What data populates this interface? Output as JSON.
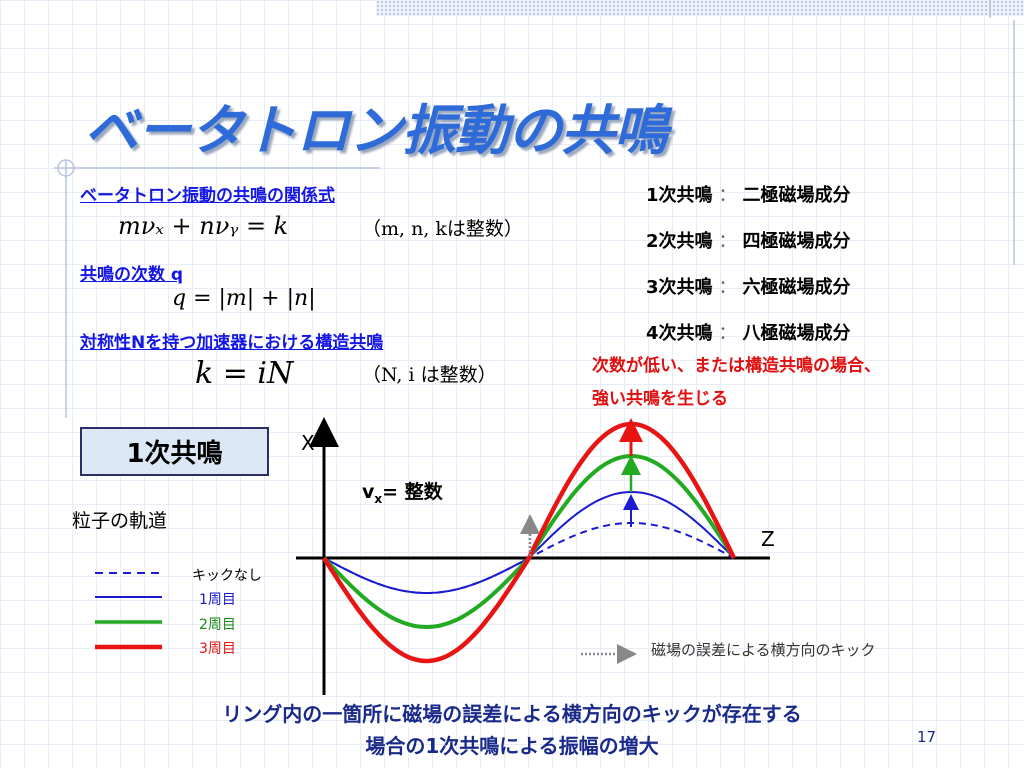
{
  "title": "ベータトロン振動の共鳴",
  "relation": {
    "heading": "ベータトロン振動の共鳴の関係式",
    "formula": "mνₓ + nνᵧ = k",
    "note": "（m, n, kは整数）"
  },
  "order": {
    "heading": "共鳴の次数 q",
    "formula": "q = |m| + |n|"
  },
  "structural": {
    "heading": "対称性Nを持つ加速器における構造共鳴",
    "formula": "k = iN",
    "note": "（N, i は整数）"
  },
  "resonances": [
    {
      "order": "1",
      "label": "次共鳴",
      "sep": "：",
      "component": "二極磁場成分"
    },
    {
      "order": "2",
      "label": "次共鳴",
      "sep": "：",
      "component": "四極磁場成分"
    },
    {
      "order": "3",
      "label": "次共鳴",
      "sep": "：",
      "component": "六極磁場成分"
    },
    {
      "order": "4",
      "label": "次共鳴",
      "sep": "：",
      "component": "八極磁場成分"
    }
  ],
  "red_note": {
    "line1": "次数が低い、または構造共鳴の場合、",
    "line2": "強い共鳴を生じる"
  },
  "box_label": "1次共鳴",
  "trajectory_label": "粒子の軌道",
  "plot": {
    "x_axis": "X",
    "z_axis": "Z",
    "vx_label": "v",
    "vx_sub": "x",
    "vx_value": "= 整数"
  },
  "legend": [
    {
      "label": "キックなし",
      "color": "#1a1ad0",
      "style": "dashed"
    },
    {
      "label": "1周目",
      "color": "#1a1ad0",
      "style": "solid"
    },
    {
      "label": "2周目",
      "color": "#22aa22",
      "style": "solid"
    },
    {
      "label": "3周目",
      "color": "#e81414",
      "style": "solid"
    }
  ],
  "kick_legend": "磁場の誤差による横方向のキック",
  "bottom_text": {
    "line1": "リング内の一箇所に磁場の誤差による横方向のキックが存在する",
    "line2": "場合の1次共鳴による振幅の増大"
  },
  "page_number": "17",
  "colors": {
    "title": "#2e6bd8",
    "link_blue": "#1416e6",
    "red": "#e01010",
    "green": "#22aa22",
    "blue_curve": "#1a1ad0"
  }
}
